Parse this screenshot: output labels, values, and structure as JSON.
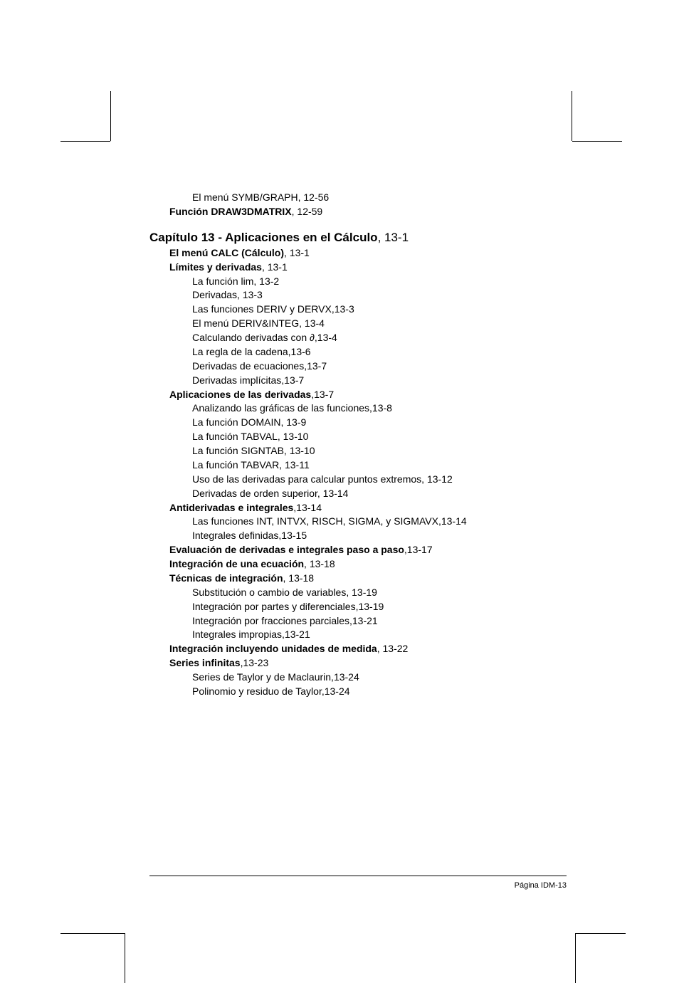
{
  "preChapter": [
    {
      "text": "El menú SYMB/GRAPH, 12-56",
      "bold": false,
      "indent": 2
    },
    {
      "boldText": "Función DRAW3DMATRIX",
      "ref": ", 12-59",
      "bold": true,
      "indent": 1
    }
  ],
  "chapter": {
    "title": "Capítulo 13 - Aplicaciones en el Cálculo",
    "ref": ", 13-1"
  },
  "entries": [
    {
      "boldText": "El menú CALC (Cálculo)",
      "ref": ", 13-1",
      "bold": true,
      "indent": 1
    },
    {
      "boldText": "Límites y derivadas",
      "ref": ", 13-1",
      "bold": true,
      "indent": 1
    },
    {
      "text": "La función lim, 13-2",
      "bold": false,
      "indent": 2
    },
    {
      "text": "Derivadas, 13-3",
      "bold": false,
      "indent": 2
    },
    {
      "text": "Las funciones DERIV y DERVX,13-3",
      "bold": false,
      "indent": 2
    },
    {
      "text": "El menú DERIV&INTEG, 13-4",
      "bold": false,
      "indent": 2
    },
    {
      "text": "Calculando derivadas con ∂,13-4",
      "bold": false,
      "indent": 2
    },
    {
      "text": "La regla de la cadena,13-6",
      "bold": false,
      "indent": 2
    },
    {
      "text": "Derivadas de ecuaciones,13-7",
      "bold": false,
      "indent": 2
    },
    {
      "text": "Derivadas implícitas,13-7",
      "bold": false,
      "indent": 2
    },
    {
      "boldText": "Aplicaciones de las derivadas",
      "ref": ",13-7",
      "bold": true,
      "indent": 1
    },
    {
      "text": "Analizando las gráficas de las funciones,13-8",
      "bold": false,
      "indent": 2
    },
    {
      "text": "La función DOMAIN, 13-9",
      "bold": false,
      "indent": 2
    },
    {
      "text": "La función TABVAL, 13-10",
      "bold": false,
      "indent": 2
    },
    {
      "text": "La función SIGNTAB, 13-10",
      "bold": false,
      "indent": 2
    },
    {
      "text": "La función TABVAR, 13-11",
      "bold": false,
      "indent": 2
    },
    {
      "text": "Uso de las derivadas para calcular puntos extremos, 13-12",
      "bold": false,
      "indent": 2
    },
    {
      "text": "Derivadas de orden superior, 13-14",
      "bold": false,
      "indent": 2
    },
    {
      "boldText": "Antiderivadas e integrales",
      "ref": ",13-14",
      "bold": true,
      "indent": 1
    },
    {
      "text": "Las funciones INT, INTVX, RISCH, SIGMA, y SIGMAVX,13-14",
      "bold": false,
      "indent": 2
    },
    {
      "text": "Integrales definidas,13-15",
      "bold": false,
      "indent": 2
    },
    {
      "boldText": "Evaluación de derivadas e integrales paso a paso",
      "ref": ",13-17",
      "bold": true,
      "indent": 1
    },
    {
      "boldText": "Integración de una ecuación",
      "ref": ", 13-18",
      "bold": true,
      "indent": 1
    },
    {
      "boldText": "Técnicas de integración",
      "ref": ", 13-18",
      "bold": true,
      "indent": 1
    },
    {
      "text": "Substitución o cambio de variables, 13-19",
      "bold": false,
      "indent": 2
    },
    {
      "text": "Integración por partes y diferenciales,13-19",
      "bold": false,
      "indent": 2
    },
    {
      "text": "Integración por fracciones parciales,13-21",
      "bold": false,
      "indent": 2
    },
    {
      "text": "Integrales impropias,13-21",
      "bold": false,
      "indent": 2
    },
    {
      "boldText": "Integración incluyendo unidades de medida",
      "ref": ", 13-22",
      "bold": true,
      "indent": 1
    },
    {
      "boldText": "Series infinitas",
      "ref": ",13-23",
      "bold": true,
      "indent": 1
    },
    {
      "text": "Series de Taylor y de Maclaurin,13-24",
      "bold": false,
      "indent": 2
    },
    {
      "text": "Polinomio y residuo de Taylor,13-24",
      "bold": false,
      "indent": 2
    }
  ],
  "footer": "Página IDM-13",
  "style": {
    "body_fontsize": 14,
    "chapter_fontsize": 17,
    "footer_fontsize": 11,
    "text_color": "#000000",
    "bg_color": "#ffffff"
  }
}
